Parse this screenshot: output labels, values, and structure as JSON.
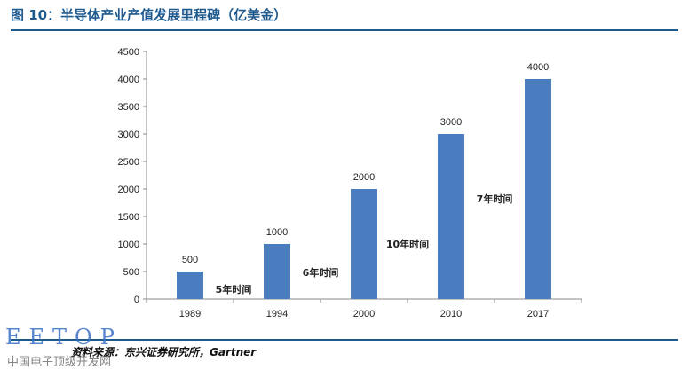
{
  "figure_title": "图 10：半导体产业产值发展里程碑（亿美金）",
  "source_text": "资料来源：东兴证券研究所，Gartner",
  "watermark": {
    "logo": "EETOP",
    "subtitle": "中国电子顶级开发网"
  },
  "colors": {
    "accent": "#1f5a8f",
    "bar": "#4a7cc0",
    "axis": "#888888",
    "text": "#222222"
  },
  "chart_data": {
    "type": "bar",
    "categories": [
      "1989",
      "1994",
      "2000",
      "2010",
      "2017"
    ],
    "values": [
      500,
      1000,
      2000,
      3000,
      4000
    ],
    "data_labels": [
      "500",
      "1000",
      "2000",
      "3000",
      "4000"
    ],
    "ylim": [
      0,
      4500
    ],
    "yticks": [
      0,
      500,
      1000,
      1500,
      2000,
      2500,
      3000,
      3500,
      4000,
      4500
    ],
    "xlabel": "",
    "ylabel": "",
    "grid": false,
    "annotations": [
      {
        "text": "5年时间",
        "between": [
          "1989",
          "1994"
        ],
        "y": 180
      },
      {
        "text": "6年时间",
        "between": [
          "1994",
          "2000"
        ],
        "y": 480
      },
      {
        "text": "10年时间",
        "between": [
          "2000",
          "2010"
        ],
        "y": 1000
      },
      {
        "text": "7年时间",
        "between": [
          "2010",
          "2017"
        ],
        "y": 1820
      }
    ]
  }
}
